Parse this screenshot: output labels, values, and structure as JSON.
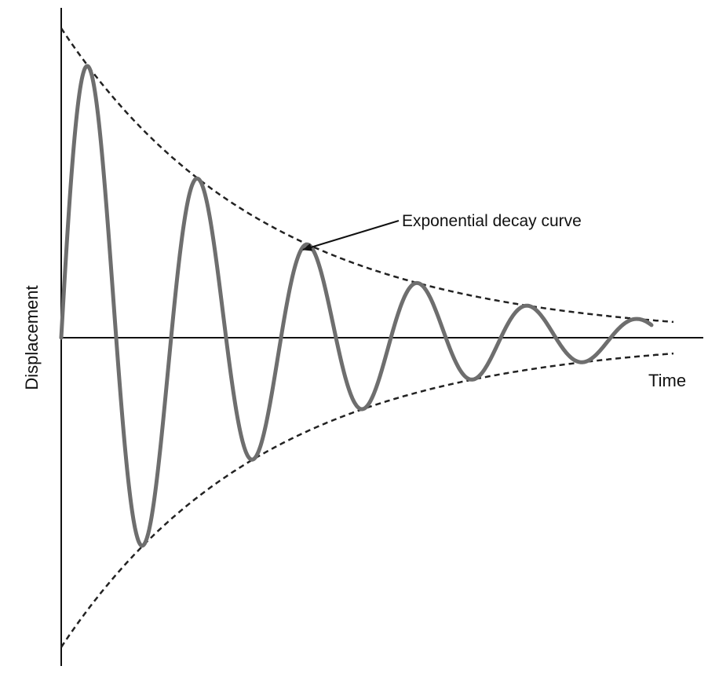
{
  "diagram": {
    "annotation_label": "Exponential decay curve",
    "x_axis_label": "Time",
    "y_axis_label": "Displacement",
    "colors": {
      "wave": "#6e6e6e",
      "envelope": "#222222",
      "axis": "#111111",
      "text": "#111111"
    }
  }
}
